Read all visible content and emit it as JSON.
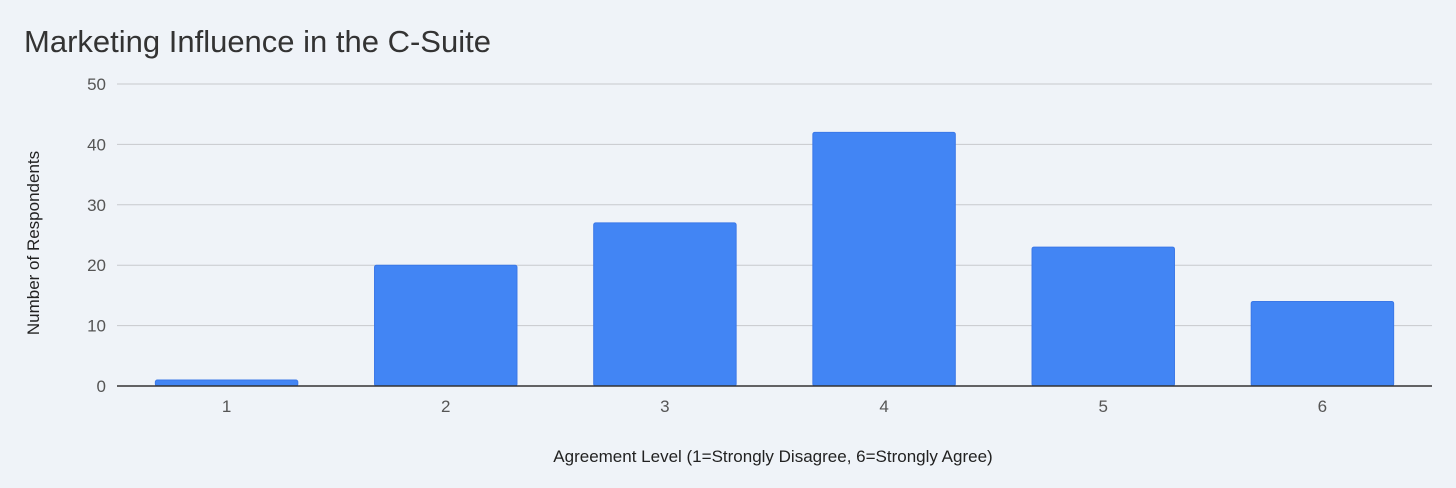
{
  "colors": {
    "background": "#eff3f8",
    "bar": "#4285f4",
    "bar_outline": "#3b78e7"
  },
  "chart_data": {
    "type": "bar",
    "title": "Marketing Influence in the C-Suite",
    "xlabel": "Agreement Level (1=Strongly Disagree, 6=Strongly Agree)",
    "ylabel": "Number of Respondents",
    "categories": [
      "1",
      "2",
      "3",
      "4",
      "5",
      "6"
    ],
    "values": [
      1,
      20,
      27,
      42,
      23,
      14
    ],
    "ylim": [
      0,
      50
    ],
    "yticks": [
      "0",
      "10",
      "20",
      "30",
      "40",
      "50"
    ],
    "grid": true,
    "legend": "none"
  }
}
